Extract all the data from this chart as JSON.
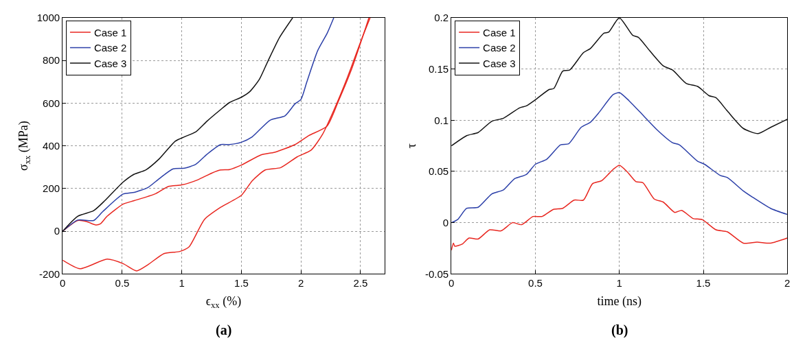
{
  "chart_data": [
    {
      "type": "line",
      "xlabel": "ϵ$_{xx}$ (%)",
      "ylabel": "σ$_{xx}$ (MPa)",
      "annotations": [
        "(a)"
      ],
      "xlim": [
        0,
        2.7
      ],
      "xticks": [
        0,
        0.5,
        1,
        1.5,
        2,
        2.5
      ],
      "ylim": [
        -200,
        1000
      ],
      "yticks": [
        -200,
        0,
        200,
        400,
        600,
        800,
        1000
      ],
      "grid": true,
      "legend": "top left",
      "line_style": "solid",
      "series": [
        {
          "name": "Case 1",
          "color": "#e8261f",
          "x": [
            0,
            0.126,
            0.2,
            0.278,
            0.316,
            0.373,
            0.507,
            0.6,
            0.773,
            0.888,
            1.0,
            1.135,
            1.25,
            1.326,
            1.4,
            1.5,
            1.666,
            1.78,
            1.95,
            2.066,
            2.218,
            2.313,
            2.427,
            2.54,
            2.57
          ],
          "values": [
            0,
            50,
            45,
            29,
            34,
            70,
            127,
            143,
            174,
            210,
            217,
            241,
            272,
            287,
            289,
            310,
            358,
            370,
            406,
            448,
            492,
            608,
            763,
            949,
            1000
          ]
        },
        {
          "name": "Case 2",
          "color": "#2b3fa8",
          "x": [
            0,
            0.126,
            0.26,
            0.335,
            0.507,
            0.6,
            0.716,
            0.81,
            0.926,
            1.02,
            1.116,
            1.21,
            1.326,
            1.4,
            1.5,
            1.59,
            1.74,
            1.866,
            1.95,
            2.0,
            2.05,
            2.14,
            2.22,
            2.275
          ],
          "values": [
            0,
            52,
            50,
            91,
            174,
            182,
            205,
            246,
            292,
            295,
            313,
            360,
            406,
            406,
            417,
            442,
            520,
            541,
            597,
            618,
            701,
            846,
            928,
            1000
          ]
        },
        {
          "name": "Case 3",
          "color": "#111111",
          "x": [
            0,
            0.126,
            0.26,
            0.354,
            0.507,
            0.6,
            0.697,
            0.81,
            0.945,
            1.02,
            1.116,
            1.21,
            1.326,
            1.4,
            1.5,
            1.57,
            1.65,
            1.72,
            1.82,
            1.93
          ],
          "values": [
            0,
            70,
            96,
            143,
            230,
            267,
            287,
            339,
            422,
            442,
            465,
            515,
            570,
            603,
            628,
            654,
            711,
            794,
            908,
            1000
          ]
        },
        {
          "color": "#e8261f",
          "x": [
            0,
            0.145,
            0.373,
            0.507,
            0.62,
            0.716,
            0.85,
            0.983,
            1.06,
            1.19,
            1.326,
            1.5,
            1.59,
            1.7,
            1.83,
            1.97,
            2.085,
            2.18,
            2.275,
            2.39,
            2.5,
            2.58
          ],
          "values": [
            -136,
            -176,
            -131,
            -152,
            -186,
            -157,
            -105,
            -95,
            -74,
            55,
            112,
            168,
            236,
            287,
            298,
            349,
            380,
            453,
            566,
            721,
            887,
            1000
          ]
        }
      ]
    },
    {
      "type": "line",
      "xlabel": "time (ns)",
      "ylabel": "τ",
      "annotations": [
        "(b)"
      ],
      "xlim": [
        0,
        2
      ],
      "xticks": [
        0,
        0.5,
        1,
        1.5,
        2
      ],
      "ylim": [
        -0.05,
        0.2
      ],
      "yticks": [
        -0.05,
        0,
        0.05,
        0.1,
        0.15,
        0.2
      ],
      "grid": true,
      "legend": "top left",
      "line_style": "solid",
      "series": [
        {
          "name": "Case 1",
          "color": "#e8261f",
          "x": [
            0,
            0.012,
            0.02,
            0.064,
            0.105,
            0.159,
            0.228,
            0.296,
            0.364,
            0.418,
            0.486,
            0.54,
            0.608,
            0.663,
            0.731,
            0.786,
            0.84,
            0.895,
            0.963,
            1,
            1.045,
            1.099,
            1.14,
            1.208,
            1.262,
            1.33,
            1.371,
            1.439,
            1.493,
            1.575,
            1.643,
            1.738,
            1.82,
            1.9,
            2
          ],
          "values": [
            -0.027,
            -0.02,
            -0.023,
            -0.021,
            -0.015,
            -0.016,
            -0.007,
            -0.008,
            0.0,
            -0.002,
            0.006,
            0.006,
            0.013,
            0.014,
            0.022,
            0.022,
            0.038,
            0.041,
            0.052,
            0.056,
            0.05,
            0.04,
            0.039,
            0.023,
            0.02,
            0.01,
            0.012,
            0.004,
            0.003,
            -0.007,
            -0.009,
            -0.02,
            -0.019,
            -0.02,
            -0.015
          ]
        },
        {
          "name": "Case 2",
          "color": "#2b3fa8",
          "x": [
            0,
            0.037,
            0.091,
            0.159,
            0.24,
            0.31,
            0.377,
            0.446,
            0.5,
            0.568,
            0.65,
            0.698,
            0.772,
            0.827,
            0.881,
            0.963,
            1,
            1.058,
            1.14,
            1.222,
            1.317,
            1.357,
            1.466,
            1.507,
            1.602,
            1.643,
            1.738,
            1.792,
            1.9,
            2
          ],
          "values": [
            0,
            0.003,
            0.014,
            0.015,
            0.028,
            0.032,
            0.043,
            0.047,
            0.057,
            0.062,
            0.076,
            0.077,
            0.093,
            0.098,
            0.108,
            0.125,
            0.127,
            0.119,
            0.105,
            0.091,
            0.078,
            0.076,
            0.06,
            0.057,
            0.046,
            0.044,
            0.031,
            0.025,
            0.014,
            0.008
          ]
        },
        {
          "name": "Case 3",
          "color": "#111111",
          "x": [
            0,
            0.091,
            0.159,
            0.24,
            0.31,
            0.405,
            0.446,
            0.5,
            0.582,
            0.61,
            0.663,
            0.704,
            0.786,
            0.827,
            0.908,
            0.936,
            1,
            1.079,
            1.113,
            1.18,
            1.262,
            1.317,
            1.398,
            1.466,
            1.534,
            1.575,
            1.643,
            1.738,
            1.826,
            1.9,
            2
          ],
          "values": [
            0.075,
            0.085,
            0.088,
            0.099,
            0.102,
            0.112,
            0.114,
            0.12,
            0.13,
            0.131,
            0.148,
            0.149,
            0.166,
            0.17,
            0.185,
            0.186,
            0.2,
            0.183,
            0.181,
            0.168,
            0.153,
            0.149,
            0.136,
            0.133,
            0.124,
            0.122,
            0.109,
            0.092,
            0.087,
            0.093,
            0.101
          ]
        }
      ]
    }
  ]
}
